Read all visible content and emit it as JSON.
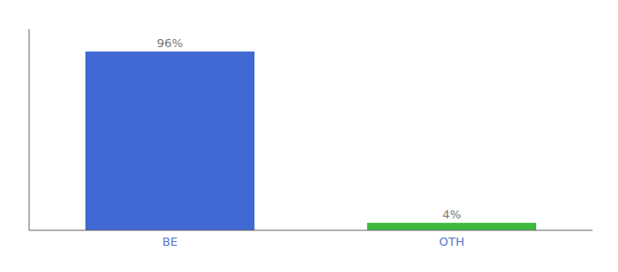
{
  "chart_data": {
    "type": "bar",
    "categories": [
      "BE",
      "OTH"
    ],
    "values": [
      96,
      4
    ],
    "value_labels": [
      "96%",
      "4%"
    ],
    "colors": [
      "#4169d4",
      "#3dba3d"
    ],
    "ylim": [
      0,
      108
    ],
    "data_labels": true,
    "tick_labels": "x",
    "grid": false
  }
}
